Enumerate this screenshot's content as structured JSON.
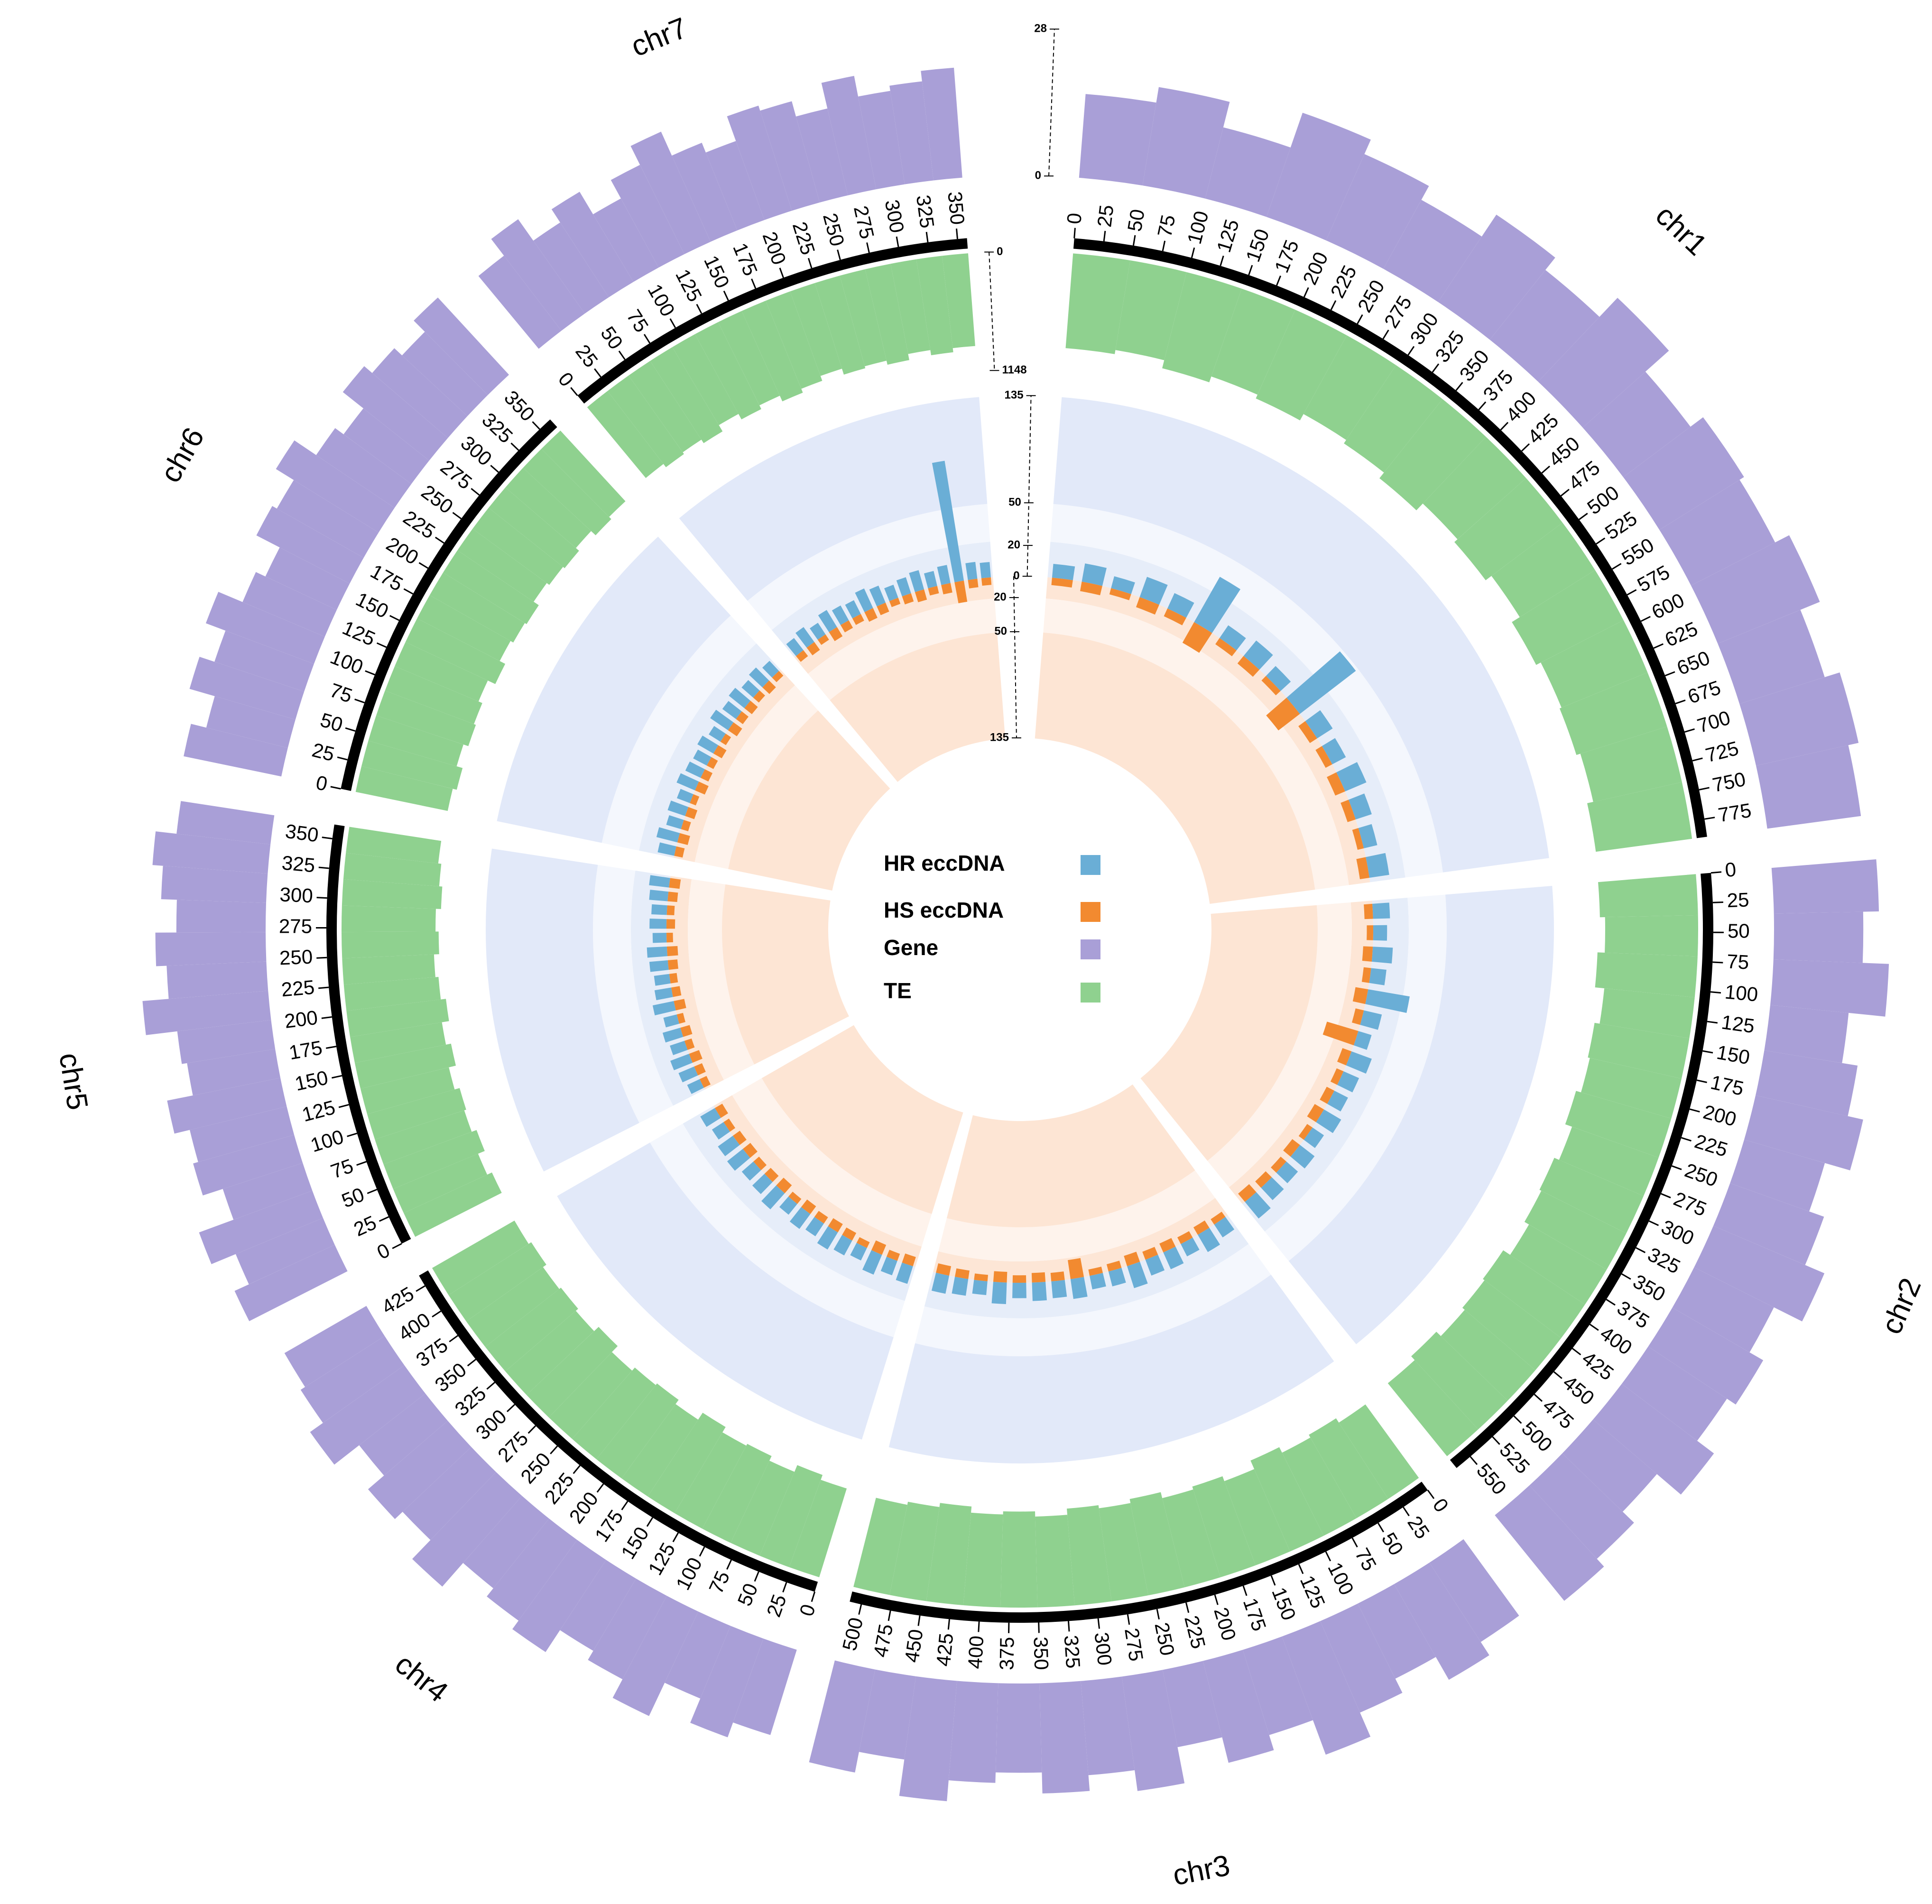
{
  "chart_data": {
    "type": "circos",
    "chromosomes": [
      {
        "name": "chr1",
        "xlim": [
          0,
          790
        ],
        "xticks": [
          0,
          25,
          50,
          75,
          100,
          125,
          150,
          175,
          200,
          225,
          250,
          275,
          300,
          325,
          350,
          375,
          400,
          425,
          450,
          475,
          500,
          525,
          550,
          575,
          600,
          625,
          650,
          675,
          700,
          725,
          750,
          775
        ]
      },
      {
        "name": "chr2",
        "xlim": [
          0,
          565
        ],
        "xticks": [
          0,
          25,
          50,
          75,
          100,
          125,
          150,
          175,
          200,
          225,
          250,
          275,
          300,
          325,
          350,
          375,
          400,
          425,
          450,
          475,
          500,
          525,
          550
        ]
      },
      {
        "name": "chr3",
        "xlim": [
          0,
          510
        ],
        "xticks": [
          0,
          25,
          50,
          75,
          100,
          125,
          150,
          175,
          200,
          225,
          250,
          275,
          300,
          325,
          350,
          375,
          400,
          425,
          450,
          475,
          500
        ]
      },
      {
        "name": "chr4",
        "xlim": [
          0,
          435
        ],
        "xticks": [
          0,
          25,
          50,
          75,
          100,
          125,
          150,
          175,
          200,
          225,
          250,
          275,
          300,
          325,
          350,
          375,
          400,
          425
        ]
      },
      {
        "name": "chr5",
        "xlim": [
          0,
          362
        ],
        "xticks": [
          0,
          25,
          50,
          75,
          100,
          125,
          150,
          175,
          200,
          225,
          250,
          275,
          300,
          325,
          350
        ]
      },
      {
        "name": "chr6",
        "xlim": [
          0,
          362
        ],
        "xticks": [
          0,
          25,
          50,
          75,
          100,
          125,
          150,
          175,
          200,
          225,
          250,
          275,
          300,
          325,
          350
        ]
      },
      {
        "name": "chr7",
        "xlim": [
          0,
          358
        ],
        "xticks": [
          0,
          25,
          50,
          75,
          100,
          125,
          150,
          175,
          200,
          225,
          250,
          275,
          300,
          325,
          350
        ]
      }
    ],
    "series": [
      {
        "name": "HR eccDNA",
        "color": "#6aaed6",
        "ylim": [
          0,
          135
        ],
        "yticks": [
          0,
          20,
          50,
          135
        ],
        "values": [
          [
            9,
            12,
            8,
            14,
            11,
            35,
            10,
            13,
            9,
            48,
            12,
            10,
            15,
            11,
            9,
            13
          ],
          [
            11,
            9,
            13,
            10,
            28,
            12,
            9,
            14,
            11,
            10,
            13,
            9,
            12,
            10,
            11,
            14
          ],
          [
            10,
            13,
            9,
            12,
            11,
            15,
            10,
            9,
            13,
            11,
            12,
            10,
            14,
            9,
            11,
            12
          ],
          [
            12,
            10,
            14,
            9,
            11,
            13,
            10,
            12,
            9,
            14,
            11,
            10,
            13,
            12,
            9,
            11
          ],
          [
            9,
            11,
            13,
            10,
            12,
            9,
            14,
            11,
            10,
            12,
            13,
            9,
            11,
            10,
            12,
            13
          ],
          [
            11,
            14,
            10,
            12,
            9,
            13,
            11,
            10,
            12,
            9,
            14,
            11,
            13,
            10,
            12,
            9
          ],
          [
            10,
            12,
            9,
            13,
            11,
            10,
            14,
            12,
            9,
            11,
            13,
            10,
            12,
            88,
            11,
            10
          ]
        ]
      },
      {
        "name": "HS eccDNA",
        "color": "#f28a30",
        "ylim": [
          0,
          135
        ],
        "yticks": [
          20,
          50,
          135
        ],
        "values": [
          [
            7,
            9,
            6,
            10,
            8,
            22,
            7,
            9,
            6,
            25,
            8,
            7,
            10,
            8,
            6,
            9
          ],
          [
            8,
            6,
            9,
            7,
            12,
            8,
            30,
            9,
            7,
            8,
            10,
            6,
            9,
            7,
            8,
            10
          ],
          [
            6,
            8,
            7,
            9,
            8,
            10,
            7,
            6,
            18,
            8,
            9,
            7,
            10,
            6,
            8,
            9
          ],
          [
            9,
            7,
            10,
            6,
            8,
            9,
            7,
            9,
            6,
            10,
            8,
            7,
            9,
            8,
            6,
            8
          ],
          [
            7,
            8,
            10,
            7,
            9,
            6,
            10,
            8,
            7,
            9,
            10,
            6,
            8,
            7,
            9,
            10
          ],
          [
            8,
            10,
            7,
            9,
            6,
            10,
            8,
            7,
            9,
            6,
            10,
            8,
            9,
            7,
            9,
            6
          ],
          [
            7,
            9,
            6,
            10,
            8,
            7,
            10,
            9,
            6,
            8,
            10,
            7,
            9,
            20,
            8,
            7
          ]
        ]
      },
      {
        "name": "Gene",
        "color": "#a99fd7",
        "ylim": [
          0,
          28
        ],
        "yticks": [
          0,
          28
        ],
        "values": [
          [
            16,
            19,
            14,
            21,
            18,
            15,
            20,
            17,
            22,
            16,
            19,
            18,
            21,
            17,
            20,
            18
          ],
          [
            20,
            17,
            22,
            15,
            18,
            21,
            16,
            19,
            23,
            17,
            20,
            18,
            22,
            16,
            19,
            21
          ],
          [
            18,
            21,
            16,
            19,
            24,
            17,
            20,
            15,
            22,
            18,
            21,
            17,
            19,
            23,
            16,
            20
          ],
          [
            17,
            20,
            15,
            22,
            18,
            16,
            21,
            19,
            17,
            23,
            18,
            20,
            16,
            22,
            19,
            18
          ],
          [
            21,
            18,
            23,
            16,
            20,
            19,
            22,
            17,
            18,
            24,
            19,
            21,
            17,
            20,
            22,
            18
          ],
          [
            19,
            16,
            21,
            18,
            22,
            17,
            15,
            20,
            19,
            23,
            18,
            16,
            21,
            19,
            17,
            20
          ],
          [
            18,
            22,
            17,
            20,
            15,
            19,
            23,
            18,
            16,
            21,
            20,
            17,
            22,
            18,
            19,
            21
          ]
        ]
      },
      {
        "name": "TE",
        "color": "#8fd18f",
        "ylim": [
          0,
          1148
        ],
        "yticks": [
          0,
          1148
        ],
        "values": [
          [
            920,
            880,
            960,
            900,
            940,
            870,
            910,
            980,
            890,
            930,
            860,
            950,
            900,
            920,
            880,
            940
          ],
          [
            950,
            900,
            970,
            880,
            930,
            910,
            960,
            890,
            940,
            920,
            870,
            950,
            930,
            900,
            960,
            910
          ],
          [
            880,
            930,
            900,
            960,
            870,
            920,
            890,
            950,
            910,
            940,
            880,
            930,
            900,
            960,
            920,
            890
          ],
          [
            900,
            950,
            880,
            930,
            910,
            970,
            890,
            940,
            920,
            880,
            960,
            900,
            930,
            910,
            950,
            920
          ],
          [
            940,
            890,
            960,
            910,
            930,
            880,
            950,
            900,
            970,
            920,
            890,
            940,
            910,
            960,
            930,
            900
          ],
          [
            910,
            950,
            890,
            940,
            920,
            880,
            960,
            900,
            930,
            950,
            890,
            920,
            940,
            900,
            960,
            930
          ],
          [
            890,
            930,
            910,
            950,
            880,
            940,
            900,
            960,
            920,
            870,
            930,
            910,
            950,
            890,
            940,
            900
          ]
        ]
      }
    ]
  }
}
